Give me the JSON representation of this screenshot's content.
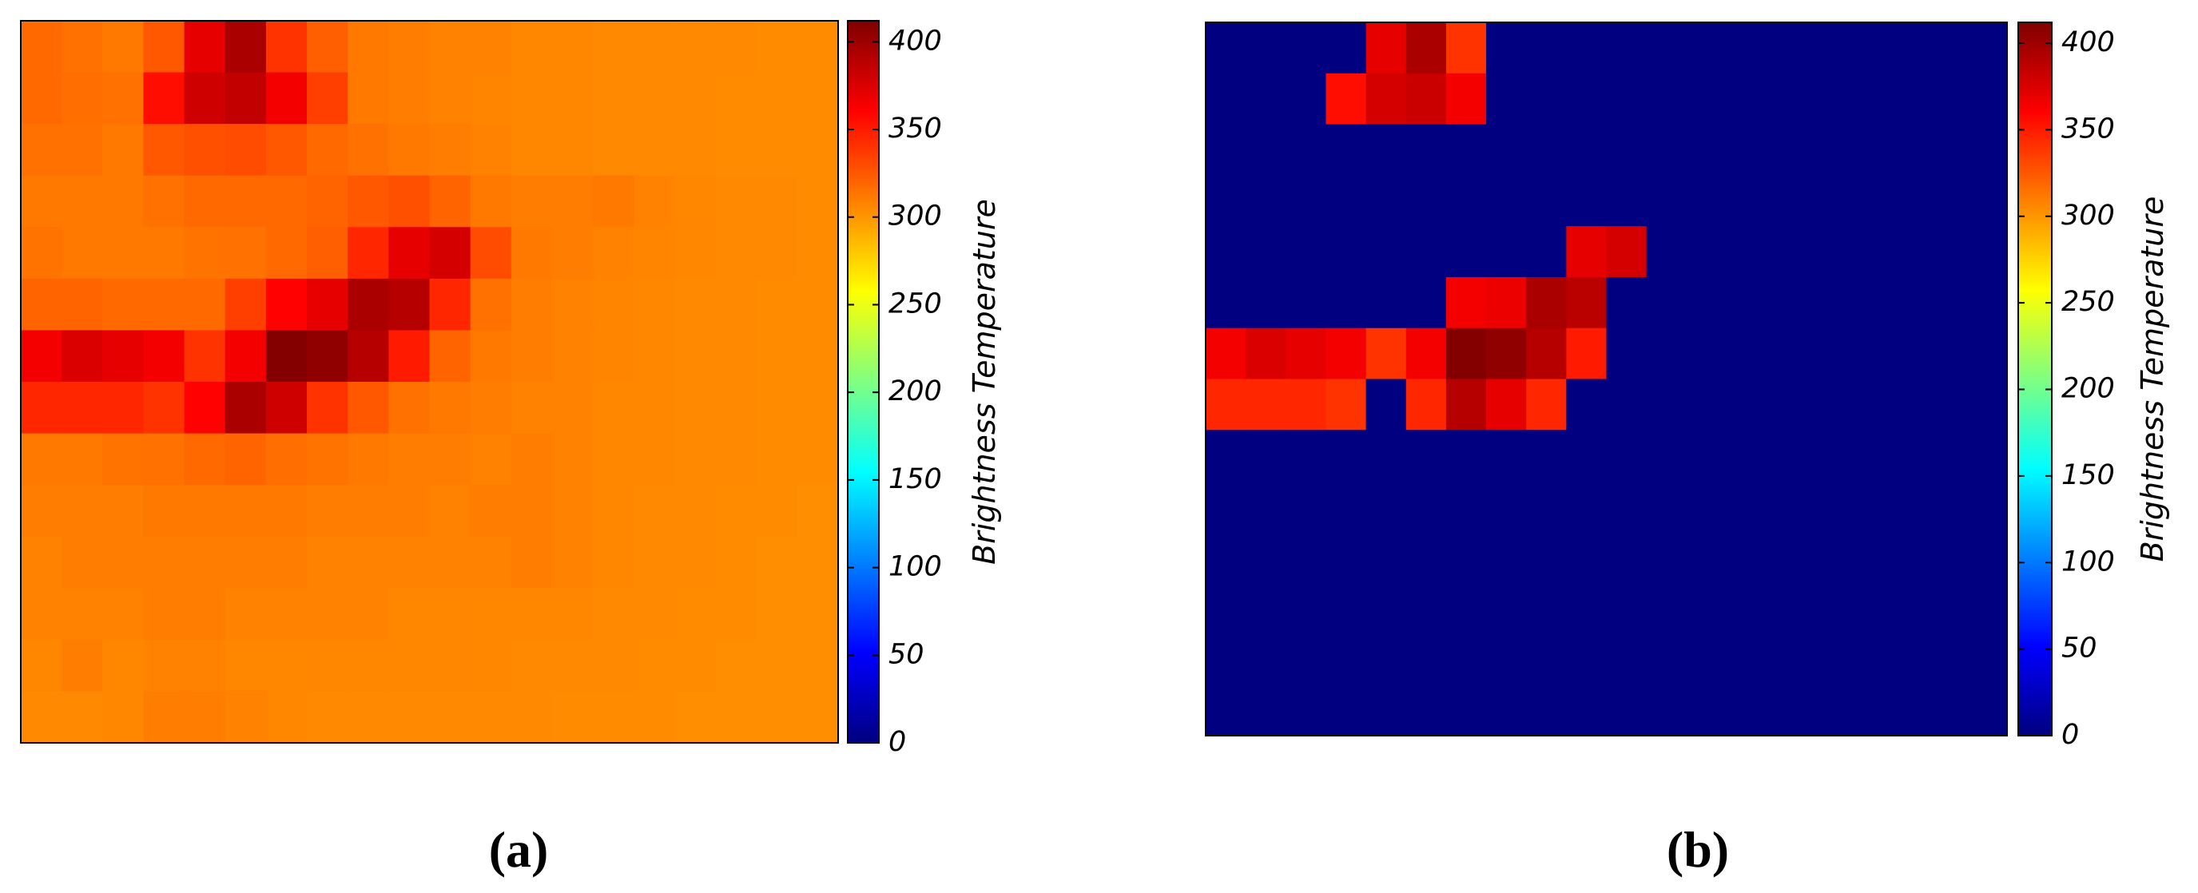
{
  "chart_data": [
    {
      "type": "heatmap",
      "label": "(a)",
      "colormap": "jet",
      "colorbar_label": "Brightness Temperature",
      "clim": [
        0,
        412
      ],
      "colorbar_ticks": [
        0,
        50,
        100,
        150,
        200,
        250,
        300,
        350,
        400
      ],
      "values": [
        [
          318,
          315,
          312,
          325,
          370,
          395,
          340,
          322,
          312,
          310,
          308,
          308,
          306,
          306,
          305,
          305,
          305,
          305,
          304,
          304
        ],
        [
          318,
          316,
          315,
          355,
          380,
          385,
          365,
          335,
          312,
          310,
          308,
          307,
          306,
          306,
          305,
          305,
          305,
          304,
          304,
          304
        ],
        [
          315,
          315,
          312,
          325,
          328,
          330,
          325,
          318,
          315,
          312,
          310,
          308,
          306,
          306,
          305,
          305,
          305,
          304,
          304,
          304
        ],
        [
          312,
          312,
          312,
          315,
          318,
          318,
          318,
          320,
          325,
          328,
          320,
          312,
          310,
          310,
          312,
          308,
          306,
          305,
          305,
          304
        ],
        [
          314,
          312,
          312,
          312,
          314,
          315,
          318,
          322,
          345,
          370,
          378,
          330,
          312,
          310,
          308,
          307,
          306,
          305,
          305,
          304
        ],
        [
          320,
          320,
          318,
          318,
          318,
          335,
          360,
          370,
          395,
          390,
          345,
          315,
          310,
          308,
          307,
          306,
          305,
          305,
          304,
          304
        ],
        [
          365,
          375,
          370,
          365,
          340,
          365,
          410,
          405,
          390,
          350,
          320,
          312,
          310,
          308,
          307,
          306,
          305,
          305,
          304,
          304
        ],
        [
          345,
          345,
          345,
          340,
          360,
          395,
          380,
          340,
          325,
          315,
          312,
          310,
          308,
          308,
          306,
          306,
          305,
          305,
          304,
          304
        ],
        [
          312,
          312,
          314,
          315,
          318,
          320,
          316,
          314,
          312,
          310,
          310,
          308,
          310,
          308,
          306,
          306,
          305,
          305,
          304,
          304
        ],
        [
          310,
          310,
          310,
          312,
          312,
          312,
          312,
          310,
          310,
          310,
          308,
          310,
          310,
          308,
          306,
          305,
          305,
          304,
          304,
          303
        ],
        [
          308,
          310,
          310,
          310,
          310,
          310,
          310,
          308,
          308,
          308,
          308,
          308,
          310,
          308,
          306,
          305,
          305,
          304,
          303,
          303
        ],
        [
          308,
          308,
          308,
          310,
          310,
          308,
          308,
          308,
          308,
          306,
          306,
          306,
          306,
          306,
          305,
          305,
          304,
          304,
          303,
          303
        ],
        [
          306,
          310,
          306,
          308,
          308,
          306,
          306,
          306,
          306,
          306,
          306,
          306,
          305,
          305,
          305,
          304,
          304,
          303,
          303,
          303
        ],
        [
          305,
          305,
          306,
          310,
          310,
          308,
          306,
          305,
          305,
          305,
          305,
          305,
          305,
          304,
          304,
          304,
          303,
          303,
          303,
          303
        ]
      ]
    },
    {
      "type": "heatmap",
      "label": "(b)",
      "colormap": "jet",
      "colorbar_label": "Brightness Temperature",
      "clim": [
        0,
        412
      ],
      "colorbar_ticks": [
        0,
        50,
        100,
        150,
        200,
        250,
        300,
        350,
        400
      ],
      "values": [
        [
          0,
          0,
          0,
          0,
          370,
          395,
          340,
          0,
          0,
          0,
          0,
          0,
          0,
          0,
          0,
          0,
          0,
          0,
          0,
          0
        ],
        [
          0,
          0,
          0,
          355,
          378,
          382,
          365,
          0,
          0,
          0,
          0,
          0,
          0,
          0,
          0,
          0,
          0,
          0,
          0,
          0
        ],
        [
          0,
          0,
          0,
          0,
          0,
          0,
          0,
          0,
          0,
          0,
          0,
          0,
          0,
          0,
          0,
          0,
          0,
          0,
          0,
          0
        ],
        [
          0,
          0,
          0,
          0,
          0,
          0,
          0,
          0,
          0,
          0,
          0,
          0,
          0,
          0,
          0,
          0,
          0,
          0,
          0,
          0
        ],
        [
          0,
          0,
          0,
          0,
          0,
          0,
          0,
          0,
          0,
          370,
          378,
          0,
          0,
          0,
          0,
          0,
          0,
          0,
          0,
          0
        ],
        [
          0,
          0,
          0,
          0,
          0,
          0,
          365,
          368,
          395,
          388,
          0,
          0,
          0,
          0,
          0,
          0,
          0,
          0,
          0,
          0
        ],
        [
          365,
          375,
          370,
          365,
          340,
          365,
          410,
          405,
          390,
          350,
          0,
          0,
          0,
          0,
          0,
          0,
          0,
          0,
          0,
          0
        ],
        [
          345,
          345,
          345,
          340,
          0,
          345,
          390,
          370,
          345,
          0,
          0,
          0,
          0,
          0,
          0,
          0,
          0,
          0,
          0,
          0
        ],
        [
          0,
          0,
          0,
          0,
          0,
          0,
          0,
          0,
          0,
          0,
          0,
          0,
          0,
          0,
          0,
          0,
          0,
          0,
          0,
          0
        ],
        [
          0,
          0,
          0,
          0,
          0,
          0,
          0,
          0,
          0,
          0,
          0,
          0,
          0,
          0,
          0,
          0,
          0,
          0,
          0,
          0
        ],
        [
          0,
          0,
          0,
          0,
          0,
          0,
          0,
          0,
          0,
          0,
          0,
          0,
          0,
          0,
          0,
          0,
          0,
          0,
          0,
          0
        ],
        [
          0,
          0,
          0,
          0,
          0,
          0,
          0,
          0,
          0,
          0,
          0,
          0,
          0,
          0,
          0,
          0,
          0,
          0,
          0,
          0
        ],
        [
          0,
          0,
          0,
          0,
          0,
          0,
          0,
          0,
          0,
          0,
          0,
          0,
          0,
          0,
          0,
          0,
          0,
          0,
          0,
          0
        ],
        [
          0,
          0,
          0,
          0,
          0,
          0,
          0,
          0,
          0,
          0,
          0,
          0,
          0,
          0,
          0,
          0,
          0,
          0,
          0,
          0
        ]
      ]
    }
  ]
}
